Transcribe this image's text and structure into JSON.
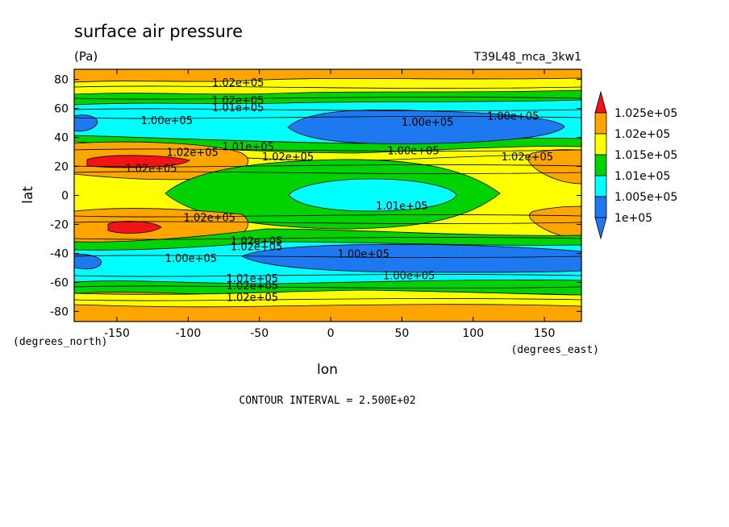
{
  "chart_data": {
    "type": "contour",
    "title": "surface air pressure",
    "units": "(Pa)",
    "dataset": "T39L48_mca_3kw1",
    "xlabel": "lon",
    "ylabel": "lat",
    "x_units": "(degrees_east)",
    "y_units": "(degrees_north)",
    "xlim": [
      -180,
      176
    ],
    "ylim": [
      -87,
      87
    ],
    "x_ticks": [
      -150,
      -100,
      -50,
      0,
      50,
      100,
      150
    ],
    "y_ticks": [
      -80,
      -60,
      -40,
      -20,
      0,
      20,
      40,
      60,
      80
    ],
    "contour_interval": "CONTOUR INTERVAL = 2.500E+02",
    "levels": [
      100000,
      100500,
      101000,
      101500,
      102000,
      102500
    ],
    "colorbar": {
      "labels": [
        "1e+05",
        "1.005e+05",
        "1.01e+05",
        "1.015e+05",
        "1.02e+05",
        "1.025e+05"
      ],
      "colors": [
        "#1e78f0",
        "#00ffff",
        "#00d200",
        "#ffff00",
        "#ffa500",
        "#f01414"
      ]
    },
    "contour_labels": [
      {
        "text": "1.02e+05",
        "lon": -65,
        "lat": 78
      },
      {
        "text": "1.02e+05",
        "lon": -65,
        "lat": 66
      },
      {
        "text": "1.01e+05",
        "lon": -65,
        "lat": 61
      },
      {
        "text": "1.00e+05",
        "lon": -115,
        "lat": 52
      },
      {
        "text": "1.00e+05",
        "lon": 68,
        "lat": 51
      },
      {
        "text": "1.00e+05",
        "lon": 128,
        "lat": 55
      },
      {
        "text": "1.01e+05",
        "lon": -58,
        "lat": 34
      },
      {
        "text": "1.02e+05",
        "lon": -97,
        "lat": 30
      },
      {
        "text": "1.02e+05",
        "lon": -30,
        "lat": 27
      },
      {
        "text": "1.00e+05",
        "lon": 58,
        "lat": 31
      },
      {
        "text": "1.02e+05",
        "lon": 138,
        "lat": 27
      },
      {
        "text": "1.02e+05",
        "lon": -126,
        "lat": 19
      },
      {
        "text": "1.01e+05",
        "lon": 50,
        "lat": -7
      },
      {
        "text": "1.02e+05",
        "lon": -85,
        "lat": -15
      },
      {
        "text": "1.02e+05",
        "lon": -52,
        "lat": -31
      },
      {
        "text": "1.02e+05",
        "lon": -52,
        "lat": -35
      },
      {
        "text": "1.00e+05",
        "lon": -98,
        "lat": -43
      },
      {
        "text": "1.00e+05",
        "lon": 23,
        "lat": -40
      },
      {
        "text": "1.00e+05",
        "lon": 55,
        "lat": -55
      },
      {
        "text": "1.01e+05",
        "lon": -55,
        "lat": -57
      },
      {
        "text": "1.02e+05",
        "lon": -55,
        "lat": -62
      },
      {
        "text": "1.02e+05",
        "lon": -55,
        "lat": -70
      }
    ]
  }
}
